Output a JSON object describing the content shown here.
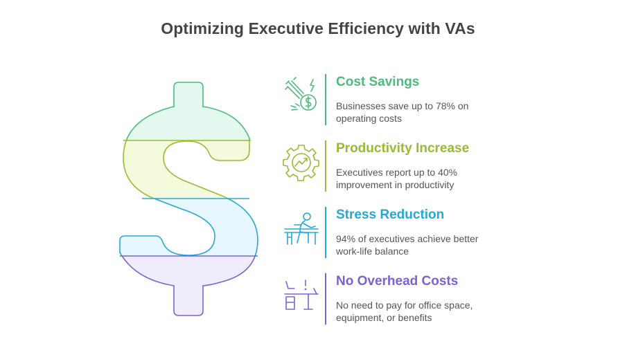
{
  "title": "Optimizing Executive Efficiency with VAs",
  "colors": {
    "green": "#4cbb7c",
    "lime": "#97bb33",
    "cyan": "#23a9d8",
    "purple": "#7b62d3",
    "green_fill": "#e3f8ee",
    "lime_fill": "#f3fbdc",
    "cyan_fill": "#e5f6fc",
    "purple_fill": "#efecfb"
  },
  "items": [
    {
      "heading": "Cost Savings",
      "description": "Businesses save up to 78% on operating costs",
      "icon": "money-rocket-icon",
      "color": "#4cbb7c"
    },
    {
      "heading": "Productivity Increase",
      "description": "Executives report up to 40% improvement in productivity",
      "icon": "gear-growth-icon",
      "color": "#97bb33"
    },
    {
      "heading": "Stress Reduction",
      "description": "94% of executives achieve better work-life balance",
      "icon": "relaxed-worker-icon",
      "color": "#23a9d8"
    },
    {
      "heading": "No Overhead Costs",
      "description": "No need to pay for office space, equipment, or benefits",
      "icon": "empty-office-icon",
      "color": "#7b62d3"
    }
  ]
}
